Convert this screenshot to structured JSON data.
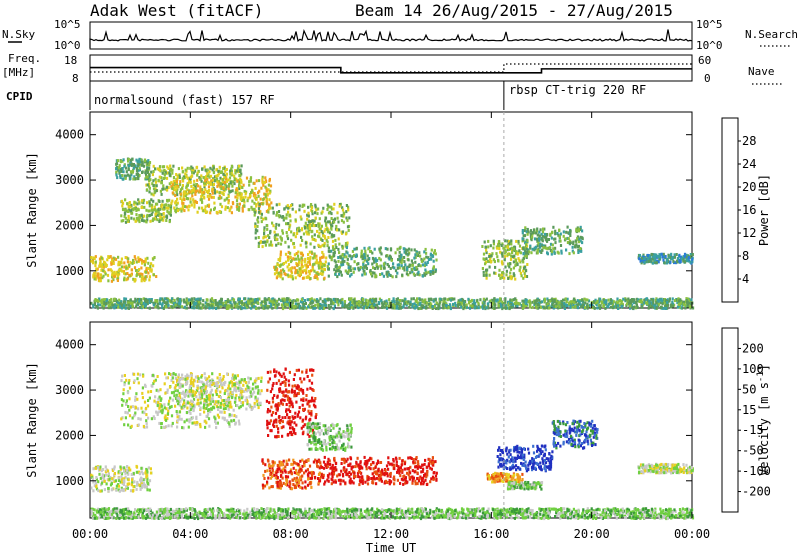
{
  "header": {
    "station": "Adak West (fitACF)",
    "beam_info": "Beam 14 26/Aug/2015 - 27/Aug/2015"
  },
  "status_panel": {
    "nsky_label": "N.Sky",
    "nsearch_label": "N.Search",
    "freq_label": "Freq.",
    "freq_unit": "[MHz]",
    "nave_label": "Nave",
    "cpid_label": "CPID",
    "nsky_ticks": [
      "10^5",
      "10^0"
    ],
    "nsearch_ticks": [
      "10^5",
      "10^0"
    ],
    "freq_ticks": [
      "18",
      "8"
    ],
    "nave_ticks": [
      "60",
      "0"
    ],
    "cpid_1": "normalsound (fast) 157 RF",
    "cpid_2": "rbsp CT-trig 220 RF"
  },
  "colors": {
    "power_scale": [
      "#2030e0",
      "#2a7ad8",
      "#3aa0a0",
      "#5a9a5a",
      "#8ac040",
      "#e0d020",
      "#f0a020",
      "#e86010",
      "#e02010"
    ],
    "velocity_scale": [
      "#2030c0",
      "#3c70d0",
      "#3a9a3a",
      "#70d040",
      "#c8c8c8",
      "#e8d020",
      "#f09a20",
      "#e85010",
      "#e01010"
    ]
  },
  "chart_data": [
    {
      "type": "line",
      "name": "status",
      "x_range_hours": [
        0,
        24
      ],
      "frequency_steps": [
        {
          "start": 0,
          "end": 10.0,
          "mhz": 13.2
        },
        {
          "start": 10.0,
          "end": 18.0,
          "mhz": 10.8
        },
        {
          "start": 18.0,
          "end": 24,
          "mhz": 12.6
        }
      ],
      "nave_steps": [
        {
          "start": 0,
          "end": 16.5,
          "value": 20
        },
        {
          "start": 16.5,
          "end": 24,
          "value": 40
        }
      ],
      "cpid_change_hour": 16.5
    },
    {
      "type": "heatmap",
      "name": "power",
      "ylabel": "Slant Range [km]",
      "colorbar_label": "Power [dB]",
      "colorbar_ticks": [
        28,
        24,
        20,
        16,
        12,
        8,
        4
      ],
      "ylim": [
        180,
        4500
      ],
      "yticks": [
        1000,
        2000,
        3000,
        4000
      ],
      "clusters": [
        {
          "x0": 1.0,
          "x1": 2.4,
          "y0": 3050,
          "y1": 3500,
          "c": 3
        },
        {
          "x0": 2.2,
          "x1": 6.0,
          "y0": 2700,
          "y1": 3350,
          "c": 4
        },
        {
          "x0": 1.2,
          "x1": 3.2,
          "y0": 2100,
          "y1": 2600,
          "c": 4
        },
        {
          "x0": 3.2,
          "x1": 7.2,
          "y0": 2300,
          "y1": 3100,
          "c": 5
        },
        {
          "x0": 6.5,
          "x1": 10.3,
          "y0": 1550,
          "y1": 2500,
          "c": 4
        },
        {
          "x0": 7.3,
          "x1": 9.4,
          "y0": 850,
          "y1": 1450,
          "c": 5
        },
        {
          "x0": 9.4,
          "x1": 13.8,
          "y0": 900,
          "y1": 1550,
          "c": 3
        },
        {
          "x0": 0.0,
          "x1": 2.6,
          "y0": 800,
          "y1": 1350,
          "c": 5
        },
        {
          "x0": 15.6,
          "x1": 17.4,
          "y0": 850,
          "y1": 1700,
          "c": 4
        },
        {
          "x0": 17.2,
          "x1": 19.6,
          "y0": 1400,
          "y1": 2000,
          "c": 3
        },
        {
          "x0": 21.8,
          "x1": 24.0,
          "y0": 1200,
          "y1": 1400,
          "c": 2
        },
        {
          "x0": 0.0,
          "x1": 24.0,
          "y0": 200,
          "y1": 420,
          "c": 3
        }
      ]
    },
    {
      "type": "heatmap",
      "name": "velocity",
      "ylabel": "Slant Range [km]",
      "xlabel": "Time UT",
      "colorbar_label": "Velocity [m s^-1]",
      "colorbar_ticks": [
        200,
        100,
        50,
        15,
        -15,
        -50,
        -100,
        -200
      ],
      "ylim": [
        180,
        4500
      ],
      "yticks": [
        1000,
        2000,
        3000,
        4000
      ],
      "xticks": [
        "00:00",
        "04:00",
        "08:00",
        "12:00",
        "16:00",
        "20:00",
        "00:00"
      ],
      "clusters": [
        {
          "x0": 0.0,
          "x1": 2.4,
          "y0": 800,
          "y1": 1350,
          "c": 4
        },
        {
          "x0": 1.2,
          "x1": 6.0,
          "y0": 2200,
          "y1": 3400,
          "c": 4
        },
        {
          "x0": 3.4,
          "x1": 6.8,
          "y0": 2600,
          "y1": 3300,
          "c": 4
        },
        {
          "x0": 7.0,
          "x1": 9.0,
          "y0": 2000,
          "y1": 3500,
          "c": 8
        },
        {
          "x0": 8.6,
          "x1": 10.4,
          "y0": 1700,
          "y1": 2300,
          "c": 3
        },
        {
          "x0": 6.8,
          "x1": 9.2,
          "y0": 850,
          "y1": 1500,
          "c": 7
        },
        {
          "x0": 9.2,
          "x1": 13.8,
          "y0": 950,
          "y1": 1550,
          "c": 8
        },
        {
          "x0": 15.8,
          "x1": 17.2,
          "y0": 1000,
          "y1": 1200,
          "c": 6
        },
        {
          "x0": 16.6,
          "x1": 18.0,
          "y0": 850,
          "y1": 1000,
          "c": 3
        },
        {
          "x0": 16.2,
          "x1": 18.4,
          "y0": 1250,
          "y1": 1800,
          "c": 0
        },
        {
          "x0": 18.4,
          "x1": 20.2,
          "y0": 1750,
          "y1": 2350,
          "c": 1
        },
        {
          "x0": 21.8,
          "x1": 24.0,
          "y0": 1200,
          "y1": 1400,
          "c": 4
        },
        {
          "x0": 0.0,
          "x1": 24.0,
          "y0": 200,
          "y1": 420,
          "c": 3
        }
      ]
    }
  ]
}
